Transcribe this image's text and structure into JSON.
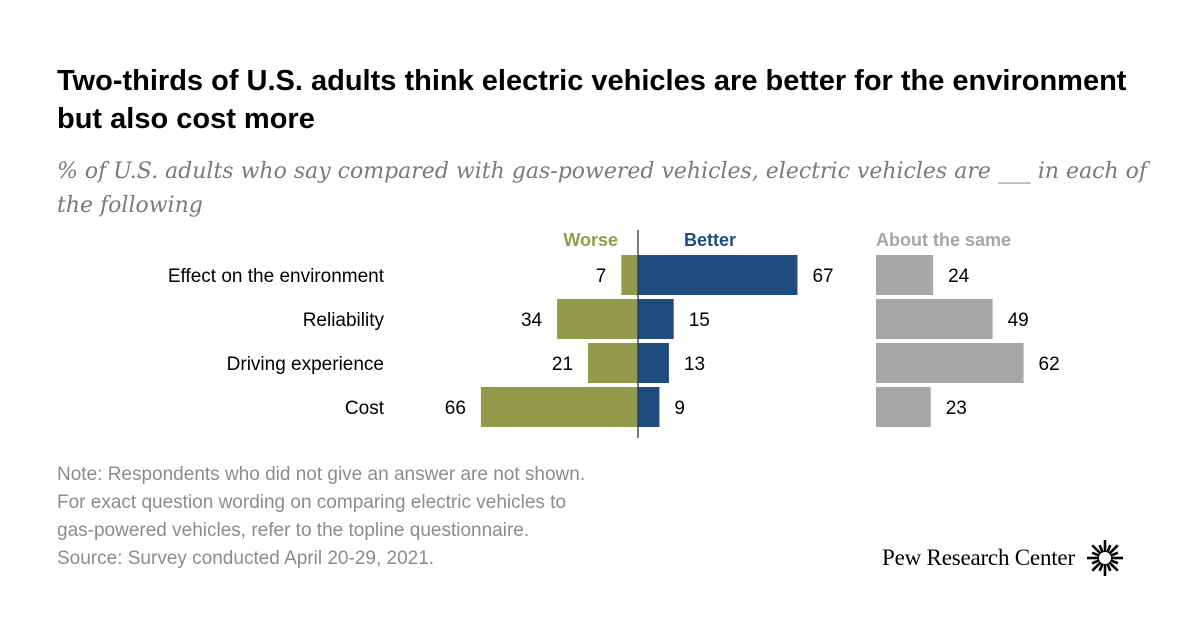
{
  "title": "Two-thirds of U.S. adults think electric vehicles are better for the environment but also cost more",
  "subtitle": "% of U.S. adults who say compared with gas-powered vehicles, electric vehicles are ___ in each of the following",
  "colors": {
    "worse": "#939b4b",
    "better": "#1e4c7f",
    "same": "#a6a6a6",
    "same_label": "#a6a6a6"
  },
  "chart_data": {
    "type": "bar",
    "subtype": "diverging-horizontal",
    "categories": [
      "Effect on the environment",
      "Reliability",
      "Driving experience",
      "Cost"
    ],
    "series": [
      {
        "name": "Worse",
        "values": [
          7,
          34,
          21,
          66
        ]
      },
      {
        "name": "Better",
        "values": [
          67,
          15,
          13,
          9
        ]
      },
      {
        "name": "About the same",
        "values": [
          24,
          49,
          62,
          23
        ]
      }
    ],
    "unit": "%"
  },
  "notes": [
    "Note: Respondents who did not give an answer are not shown.",
    "For exact question wording on comparing electric vehicles to",
    "gas-powered vehicles, refer to the topline questionnaire.",
    "Source: Survey conducted April 20-29, 2021."
  ],
  "logo": {
    "text": "Pew Research Center",
    "icon": "pew-sunburst-icon"
  }
}
